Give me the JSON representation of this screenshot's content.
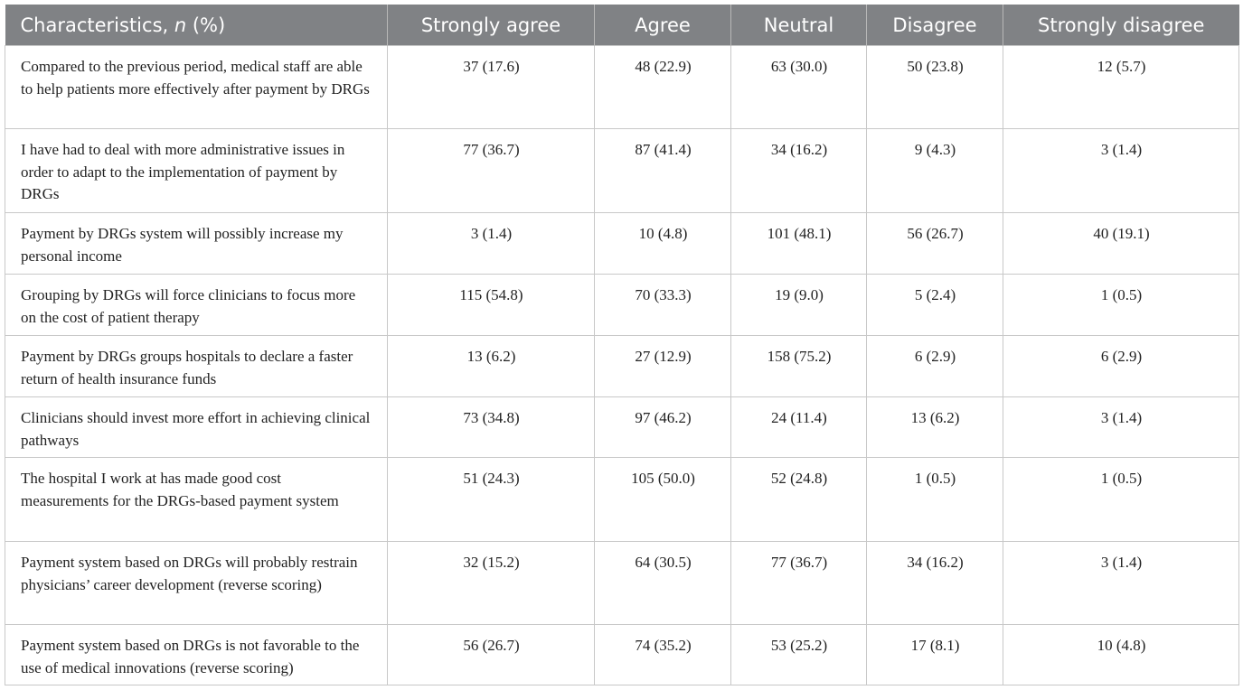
{
  "table": {
    "header": [
      {
        "before": "Characteristics, ",
        "italic": "n",
        "after": " (%)"
      },
      "Strongly agree",
      "Agree",
      "Neutral",
      "Disagree",
      "Strongly disagree"
    ],
    "rows": [
      [
        "Compared to the previous period, medical staff are able to help patients more effectively after payment by DRGs",
        "37 (17.6)",
        "48 (22.9)",
        "63 (30.0)",
        "50 (23.8)",
        "12 (5.7)"
      ],
      [
        "I have had to deal with more administrative issues in order to adapt to the implementation of payment by DRGs",
        "77 (36.7)",
        "87 (41.4)",
        "34 (16.2)",
        "9 (4.3)",
        "3 (1.4)"
      ],
      [
        "Payment by DRGs system will possibly increase my personal income",
        "3 (1.4)",
        "10 (4.8)",
        "101 (48.1)",
        "56 (26.7)",
        "40 (19.1)"
      ],
      [
        "Grouping by DRGs will force clinicians to focus more on the cost of patient therapy",
        "115 (54.8)",
        "70 (33.3)",
        "19 (9.0)",
        "5 (2.4)",
        "1 (0.5)"
      ],
      [
        "Payment by DRGs groups hospitals to declare a faster return of health insurance funds",
        "13 (6.2)",
        "27 (12.9)",
        "158 (75.2)",
        "6 (2.9)",
        "6 (2.9)"
      ],
      [
        "Clinicians should invest more effort in achieving clinical pathways",
        "73 (34.8)",
        "97 (46.2)",
        "24 (11.4)",
        "13 (6.2)",
        "3 (1.4)"
      ],
      [
        "The hospital I work at has made good cost measurements for the DRGs-based payment system",
        "51 (24.3)",
        "105 (50.0)",
        "52 (24.8)",
        "1 (0.5)",
        "1 (0.5)"
      ],
      [
        "Payment system based on DRGs will probably restrain physicians’ career development (reverse scoring)",
        "32 (15.2)",
        "64 (30.5)",
        "77 (36.7)",
        "34 (16.2)",
        "3 (1.4)"
      ],
      [
        "Payment system based on DRGs is not favorable to the use of medical innovations (reverse scoring)",
        "56 (26.7)",
        "74 (35.2)",
        "53 (25.2)",
        "17 (8.1)",
        "10 (4.8)"
      ]
    ]
  }
}
